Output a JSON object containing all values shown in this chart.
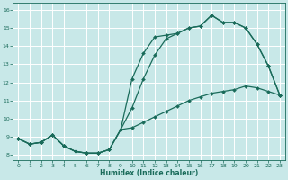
{
  "title": "",
  "xlabel": "Humidex (Indice chaleur)",
  "ylabel": "",
  "bg_color": "#c8e8e8",
  "grid_color": "#ffffff",
  "line_color": "#1a6b5a",
  "xlim": [
    -0.5,
    23.5
  ],
  "ylim": [
    7.7,
    16.4
  ],
  "xticks": [
    0,
    1,
    2,
    3,
    4,
    5,
    6,
    7,
    8,
    9,
    10,
    11,
    12,
    13,
    14,
    15,
    16,
    17,
    18,
    19,
    20,
    21,
    22,
    23
  ],
  "yticks": [
    8,
    9,
    10,
    11,
    12,
    13,
    14,
    15,
    16
  ],
  "line1_x": [
    0,
    1,
    2,
    3,
    4,
    5,
    6,
    7,
    8,
    9,
    10,
    11,
    12,
    13,
    14,
    15,
    16,
    17,
    18,
    19,
    20,
    21,
    22,
    23
  ],
  "line1_y": [
    8.9,
    8.6,
    8.7,
    9.1,
    8.5,
    8.2,
    8.1,
    8.1,
    8.3,
    9.4,
    10.6,
    12.2,
    13.5,
    14.4,
    14.7,
    15.0,
    15.1,
    15.7,
    15.3,
    15.3,
    15.0,
    14.1,
    12.9,
    11.3
  ],
  "line2_x": [
    0,
    1,
    2,
    3,
    4,
    5,
    6,
    7,
    8,
    9,
    10,
    11,
    12,
    13,
    14,
    15,
    16,
    17,
    18,
    19,
    20,
    21,
    22,
    23
  ],
  "line2_y": [
    8.9,
    8.6,
    8.7,
    9.1,
    8.5,
    8.2,
    8.1,
    8.1,
    8.3,
    9.4,
    12.2,
    13.6,
    14.5,
    14.6,
    14.7,
    15.0,
    15.1,
    15.7,
    15.3,
    15.3,
    15.0,
    14.1,
    12.9,
    11.3
  ],
  "line3_x": [
    0,
    1,
    2,
    3,
    4,
    5,
    6,
    7,
    8,
    9,
    10,
    11,
    12,
    13,
    14,
    15,
    16,
    17,
    18,
    19,
    20,
    21,
    22,
    23
  ],
  "line3_y": [
    8.9,
    8.6,
    8.7,
    9.1,
    8.5,
    8.2,
    8.1,
    8.1,
    8.3,
    9.4,
    9.5,
    9.8,
    10.1,
    10.4,
    10.7,
    11.0,
    11.2,
    11.4,
    11.5,
    11.6,
    11.8,
    11.7,
    11.5,
    11.3
  ],
  "marker": "D",
  "markersize": 2.0,
  "linewidth": 0.9
}
